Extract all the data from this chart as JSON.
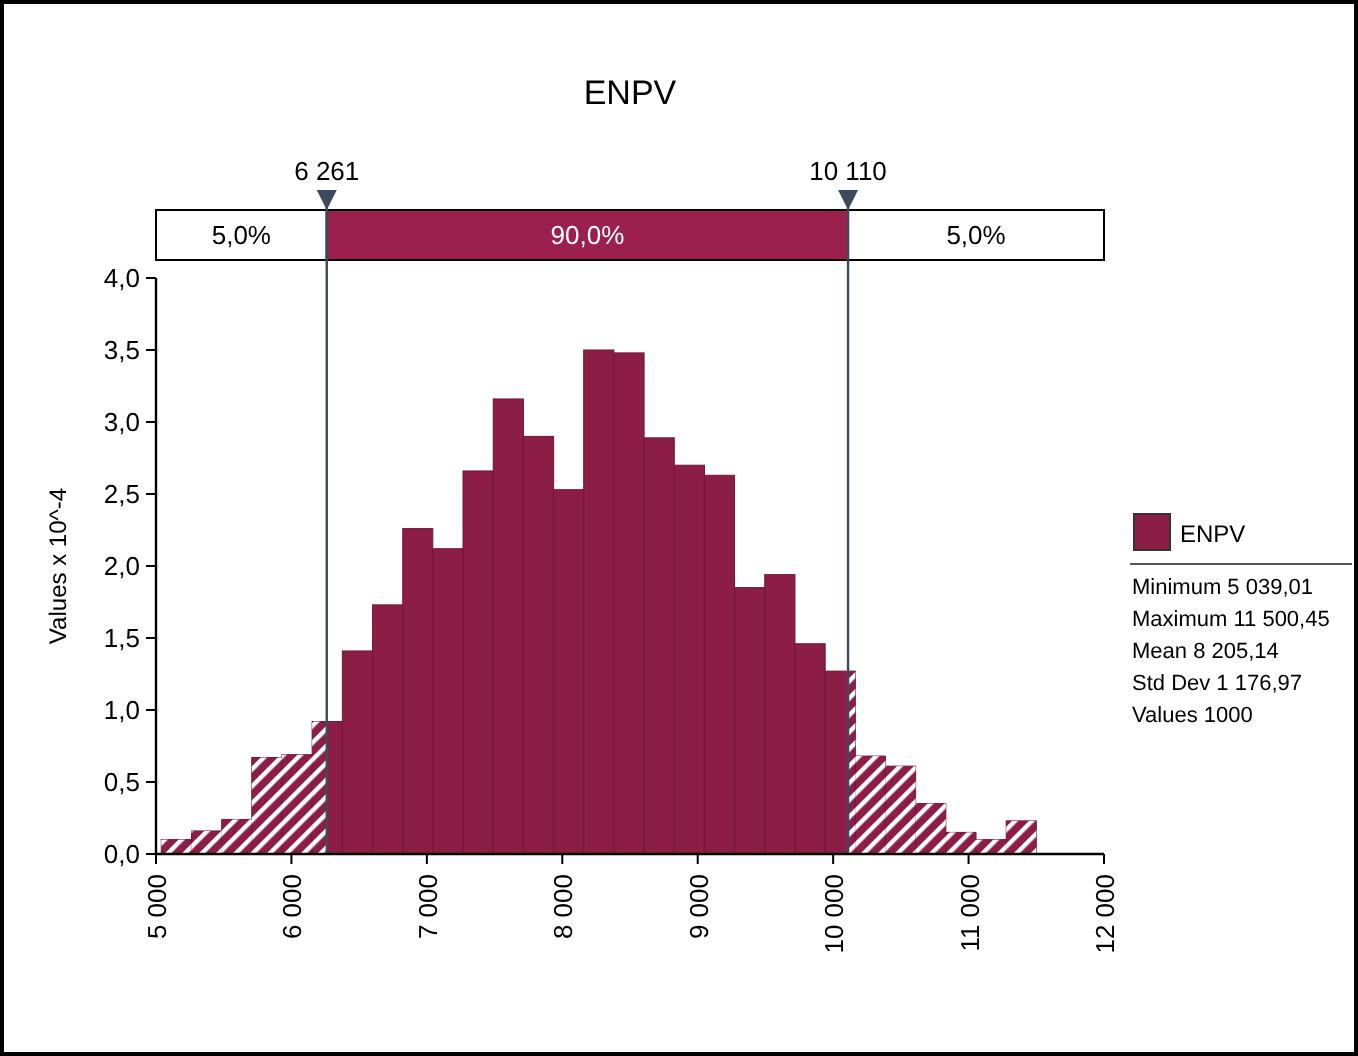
{
  "chart_data": {
    "type": "histogram",
    "title": "ENPV",
    "ylabel": "Values x 10^-4",
    "bins": [
      5039,
      5262,
      5485,
      5707,
      5930,
      6153,
      6376,
      6599,
      6822,
      7044,
      7267,
      7490,
      7713,
      7936,
      8158,
      8381,
      8604,
      8827,
      9050,
      9272,
      9495,
      9718,
      9941,
      10164,
      10386,
      10609,
      10832,
      11055,
      11278,
      11500
    ],
    "series": [
      {
        "name": "ENPV",
        "color": "#8c1d45",
        "values": [
          0.1,
          0.16,
          0.24,
          0.67,
          0.69,
          0.92,
          1.41,
          1.73,
          2.26,
          2.12,
          2.66,
          3.16,
          2.9,
          2.53,
          3.5,
          3.48,
          2.89,
          2.7,
          2.63,
          1.85,
          1.94,
          1.46,
          1.27,
          0.68,
          0.61,
          0.35,
          0.15,
          0.1,
          0.23
        ]
      }
    ],
    "xlim": [
      5000,
      12000
    ],
    "xticks": [
      {
        "value": 5000,
        "label": "5 000"
      },
      {
        "value": 6000,
        "label": "6 000"
      },
      {
        "value": 7000,
        "label": "7 000"
      },
      {
        "value": 8000,
        "label": "8 000"
      },
      {
        "value": 9000,
        "label": "9 000"
      },
      {
        "value": 10000,
        "label": "10 000"
      },
      {
        "value": 11000,
        "label": "11 000"
      },
      {
        "value": 12000,
        "label": "12 000"
      }
    ],
    "ylim": [
      0,
      4
    ],
    "yticks": [
      {
        "value": 0,
        "label": "0,0"
      },
      {
        "value": 0.5,
        "label": "0,5"
      },
      {
        "value": 1,
        "label": "1,0"
      },
      {
        "value": 1.5,
        "label": "1,5"
      },
      {
        "value": 2,
        "label": "2,0"
      },
      {
        "value": 2.5,
        "label": "2,5"
      },
      {
        "value": 3,
        "label": "3,0"
      },
      {
        "value": 3.5,
        "label": "3,5"
      },
      {
        "value": 4,
        "label": "4,0"
      }
    ],
    "ref_lines": [
      {
        "axis": "x",
        "value": 6261,
        "label": "6 261",
        "color": "#3d4a5c"
      },
      {
        "axis": "x",
        "value": 10110,
        "label": "10 110",
        "color": "#3d4a5c"
      }
    ],
    "annotations": [
      "5,0%",
      "90,0%",
      "5,0%",
      "Minimum 5 039,01",
      "Maximum 11 500,45",
      "Mean 8 205,14",
      "Std Dev 1 176,97",
      "Values 1000"
    ],
    "legend": "right",
    "grid": false
  }
}
